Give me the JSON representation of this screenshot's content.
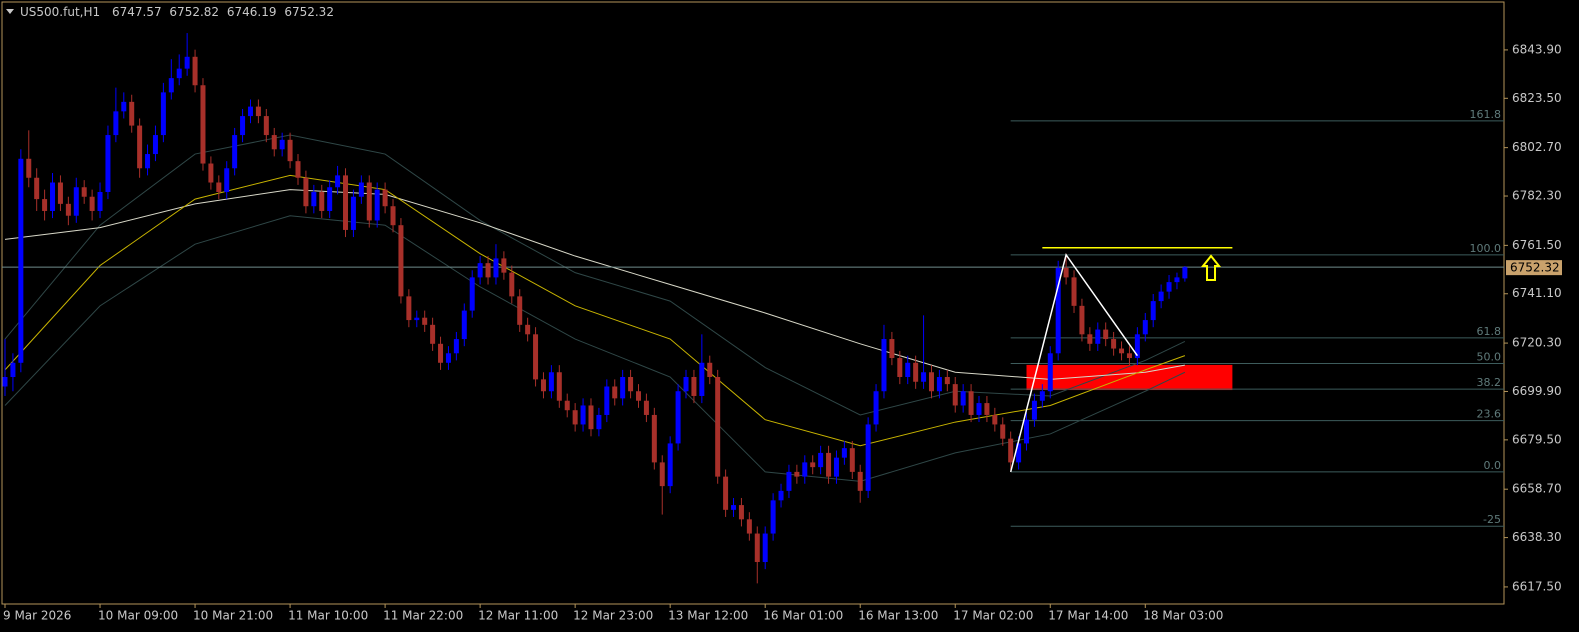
{
  "chart_data": {
    "type": "candlestick",
    "symbol": "US500.fut,H1",
    "up_color": "#0000ff",
    "down_color": "#a8302a",
    "xlim": [
      -0.38,
      189.3
    ],
    "ylim": [
      6610.3,
      6864.1
    ],
    "yticks": [
      {
        "value": 6843.9,
        "label": "6843.90"
      },
      {
        "value": 6823.5,
        "label": "6823.50"
      },
      {
        "value": 6802.7,
        "label": "6802.70"
      },
      {
        "value": 6782.3,
        "label": "6782.30"
      },
      {
        "value": 6761.5,
        "label": "6761.50"
      },
      {
        "value": 6741.1,
        "label": "6741.10"
      },
      {
        "value": 6720.3,
        "label": "6720.30"
      },
      {
        "value": 6699.9,
        "label": "6699.90"
      },
      {
        "value": 6679.5,
        "label": "6679.50"
      },
      {
        "value": 6658.7,
        "label": "6658.70"
      },
      {
        "value": 6638.3,
        "label": "6638.30"
      },
      {
        "value": 6617.5,
        "label": "6617.50"
      }
    ],
    "xticks": [
      {
        "value": 0,
        "label": "9 Mar 2026"
      },
      {
        "value": 12,
        "label": "10 Mar 09:00"
      },
      {
        "value": 24,
        "label": "10 Mar 21:00"
      },
      {
        "value": 36,
        "label": "11 Mar 10:00"
      },
      {
        "value": 48,
        "label": "11 Mar 22:00"
      },
      {
        "value": 60,
        "label": "12 Mar 11:00"
      },
      {
        "value": 72,
        "label": "12 Mar 23:00"
      },
      {
        "value": 84,
        "label": "13 Mar 12:00"
      },
      {
        "value": 96,
        "label": "16 Mar 01:00"
      },
      {
        "value": 108,
        "label": "16 Mar 13:00"
      },
      {
        "value": 120,
        "label": "17 Mar 02:00"
      },
      {
        "value": 132,
        "label": "17 Mar 14:00"
      },
      {
        "value": 144,
        "label": "18 Mar 03:00"
      }
    ],
    "candles": [
      [
        6702,
        6722,
        6698,
        6706
      ],
      [
        6706,
        6716,
        6700,
        6712
      ],
      [
        6712,
        6802,
        6708,
        6798
      ],
      [
        6798,
        6810,
        6786,
        6790
      ],
      [
        6790,
        6794,
        6776,
        6781
      ],
      [
        6781,
        6785,
        6772,
        6776
      ],
      [
        6776,
        6792,
        6773,
        6788
      ],
      [
        6788,
        6791,
        6776,
        6779
      ],
      [
        6779,
        6782,
        6770,
        6774
      ],
      [
        6774,
        6790,
        6771,
        6786
      ],
      [
        6786,
        6789,
        6779,
        6782
      ],
      [
        6782,
        6785,
        6772,
        6776
      ],
      [
        6776,
        6788,
        6773,
        6784
      ],
      [
        6784,
        6812,
        6781,
        6808
      ],
      [
        6808,
        6828,
        6805,
        6818
      ],
      [
        6818,
        6826,
        6815,
        6822
      ],
      [
        6822,
        6825,
        6809,
        6812
      ],
      [
        6812,
        6815,
        6790,
        6794
      ],
      [
        6794,
        6804,
        6791,
        6800
      ],
      [
        6800,
        6812,
        6797,
        6808
      ],
      [
        6808,
        6830,
        6805,
        6826
      ],
      [
        6826,
        6840,
        6823,
        6832
      ],
      [
        6832,
        6842,
        6829,
        6836
      ],
      [
        6836,
        6851,
        6833,
        6841
      ],
      [
        6841,
        6844,
        6826,
        6829
      ],
      [
        6829,
        6832,
        6793,
        6796
      ],
      [
        6796,
        6799,
        6785,
        6788
      ],
      [
        6788,
        6791,
        6781,
        6784
      ],
      [
        6784,
        6797,
        6781,
        6794
      ],
      [
        6794,
        6811,
        6791,
        6808
      ],
      [
        6808,
        6819,
        6805,
        6816
      ],
      [
        6816,
        6823,
        6813,
        6820
      ],
      [
        6820,
        6823,
        6813,
        6816
      ],
      [
        6816,
        6819,
        6805,
        6808
      ],
      [
        6808,
        6811,
        6799,
        6802
      ],
      [
        6802,
        6809,
        6799,
        6806
      ],
      [
        6806,
        6809,
        6794,
        6797
      ],
      [
        6797,
        6800,
        6787,
        6790
      ],
      [
        6790,
        6793,
        6775,
        6778
      ],
      [
        6778,
        6787,
        6775,
        6784
      ],
      [
        6784,
        6787,
        6773,
        6776
      ],
      [
        6776,
        6789,
        6773,
        6786
      ],
      [
        6786,
        6795,
        6783,
        6791
      ],
      [
        6791,
        6794,
        6765,
        6768
      ],
      [
        6768,
        6785,
        6765,
        6782
      ],
      [
        6782,
        6791,
        6779,
        6788
      ],
      [
        6788,
        6791,
        6769,
        6772
      ],
      [
        6772,
        6788,
        6769,
        6785
      ],
      [
        6785,
        6788,
        6775,
        6778
      ],
      [
        6778,
        6781,
        6767,
        6770
      ],
      [
        6770,
        6773,
        6737,
        6740
      ],
      [
        6740,
        6743,
        6727,
        6730
      ],
      [
        6730,
        6734,
        6727,
        6731
      ],
      [
        6731,
        6734,
        6725,
        6728
      ],
      [
        6728,
        6731,
        6717,
        6720
      ],
      [
        6720,
        6723,
        6709,
        6712
      ],
      [
        6712,
        6719,
        6709,
        6716
      ],
      [
        6716,
        6725,
        6713,
        6722
      ],
      [
        6722,
        6737,
        6719,
        6734
      ],
      [
        6734,
        6751,
        6731,
        6748
      ],
      [
        6748,
        6757,
        6745,
        6754
      ],
      [
        6754,
        6757,
        6745,
        6748
      ],
      [
        6748,
        6762,
        6745,
        6756
      ],
      [
        6756,
        6759,
        6747,
        6750
      ],
      [
        6750,
        6753,
        6737,
        6740
      ],
      [
        6740,
        6743,
        6725,
        6728
      ],
      [
        6728,
        6731,
        6721,
        6724
      ],
      [
        6724,
        6727,
        6702,
        6705
      ],
      [
        6705,
        6708,
        6697,
        6700
      ],
      [
        6700,
        6711,
        6697,
        6708
      ],
      [
        6708,
        6711,
        6693,
        6696
      ],
      [
        6696,
        6699,
        6689,
        6692
      ],
      [
        6692,
        6695,
        6683,
        6686
      ],
      [
        6686,
        6697,
        6683,
        6694
      ],
      [
        6694,
        6697,
        6681,
        6684
      ],
      [
        6684,
        6693,
        6681,
        6690
      ],
      [
        6690,
        6705,
        6687,
        6702
      ],
      [
        6702,
        6705,
        6694,
        6697
      ],
      [
        6697,
        6709,
        6694,
        6706
      ],
      [
        6706,
        6709,
        6697,
        6700
      ],
      [
        6700,
        6703,
        6693,
        6696
      ],
      [
        6696,
        6699,
        6687,
        6690
      ],
      [
        6690,
        6693,
        6667,
        6670
      ],
      [
        6670,
        6673,
        6648,
        6660
      ],
      [
        6660,
        6681,
        6657,
        6678
      ],
      [
        6678,
        6703,
        6675,
        6700
      ],
      [
        6700,
        6709,
        6697,
        6706
      ],
      [
        6706,
        6709,
        6695,
        6698
      ],
      [
        6698,
        6724,
        6695,
        6712
      ],
      [
        6712,
        6715,
        6703,
        6706
      ],
      [
        6706,
        6709,
        6661,
        6664
      ],
      [
        6664,
        6667,
        6647,
        6650
      ],
      [
        6650,
        6655,
        6647,
        6652
      ],
      [
        6652,
        6655,
        6643,
        6646
      ],
      [
        6646,
        6649,
        6637,
        6640
      ],
      [
        6640,
        6643,
        6619,
        6628
      ],
      [
        6628,
        6643,
        6625,
        6640
      ],
      [
        6640,
        6657,
        6637,
        6654
      ],
      [
        6654,
        6661,
        6651,
        6658
      ],
      [
        6658,
        6669,
        6655,
        6666
      ],
      [
        6666,
        6669,
        6661,
        6664
      ],
      [
        6664,
        6673,
        6661,
        6670
      ],
      [
        6670,
        6673,
        6665,
        6668
      ],
      [
        6668,
        6677,
        6665,
        6674
      ],
      [
        6674,
        6677,
        6661,
        6664
      ],
      [
        6664,
        6675,
        6661,
        6672
      ],
      [
        6672,
        6679,
        6669,
        6676
      ],
      [
        6676,
        6679,
        6663,
        6666
      ],
      [
        6666,
        6669,
        6653,
        6658
      ],
      [
        6658,
        6689,
        6655,
        6686
      ],
      [
        6686,
        6703,
        6683,
        6700
      ],
      [
        6700,
        6728,
        6697,
        6722
      ],
      [
        6722,
        6725,
        6711,
        6714
      ],
      [
        6714,
        6717,
        6703,
        6706
      ],
      [
        6706,
        6715,
        6703,
        6712
      ],
      [
        6712,
        6715,
        6701,
        6704
      ],
      [
        6704,
        6732,
        6701,
        6708
      ],
      [
        6708,
        6711,
        6697,
        6700
      ],
      [
        6700,
        6709,
        6697,
        6706
      ],
      [
        6706,
        6709,
        6700,
        6703
      ],
      [
        6703,
        6706,
        6691,
        6694
      ],
      [
        6694,
        6703,
        6691,
        6700
      ],
      [
        6700,
        6703,
        6687,
        6690
      ],
      [
        6690,
        6698,
        6687,
        6695
      ],
      [
        6695,
        6698,
        6687,
        6690
      ],
      [
        6690,
        6693,
        6683,
        6686
      ],
      [
        6686,
        6689,
        6677,
        6680
      ],
      [
        6680,
        6683,
        6667,
        6670
      ],
      [
        6670,
        6681,
        6667,
        6678
      ],
      [
        6678,
        6691,
        6675,
        6688
      ],
      [
        6688,
        6699,
        6685,
        6696
      ],
      [
        6696,
        6703,
        6693,
        6700
      ],
      [
        6700,
        6719,
        6697,
        6716
      ],
      [
        6716,
        6755,
        6713,
        6752
      ],
      [
        6752,
        6758,
        6745,
        6748
      ],
      [
        6748,
        6751,
        6733,
        6736
      ],
      [
        6736,
        6739,
        6721,
        6724
      ],
      [
        6724,
        6727,
        6717,
        6720
      ],
      [
        6720,
        6729,
        6717,
        6726
      ],
      [
        6726,
        6729,
        6719,
        6722
      ],
      [
        6722,
        6725,
        6715,
        6718
      ],
      [
        6718,
        6721,
        6713,
        6716
      ],
      [
        6716,
        6719,
        6711,
        6714
      ],
      [
        6714,
        6727,
        6711,
        6724
      ],
      [
        6724,
        6733,
        6721,
        6730
      ],
      [
        6730,
        6741,
        6727,
        6738
      ],
      [
        6738,
        6745,
        6735,
        6742
      ],
      [
        6742,
        6749,
        6739,
        6746
      ],
      [
        6746,
        6750,
        6743,
        6748
      ],
      [
        6747.57,
        6752.82,
        6746.19,
        6752.32
      ]
    ],
    "moving_averages": [
      {
        "color": "#2f4747",
        "x": [
          0,
          12,
          24,
          36,
          48,
          60,
          72,
          84,
          96,
          108,
          120,
          132,
          144,
          149
        ],
        "values": [
          6722,
          6770,
          6800,
          6808,
          6800,
          6772,
          6750,
          6738,
          6710,
          6690,
          6700,
          6698,
          6713,
          6721
        ]
      },
      {
        "color": "#2f4747",
        "x": [
          0,
          12,
          24,
          36,
          48,
          60,
          72,
          84,
          96,
          108,
          120,
          132,
          144,
          149
        ],
        "values": [
          6694,
          6736,
          6762,
          6774,
          6770,
          6744,
          6722,
          6706,
          6666,
          6662,
          6674,
          6682,
          6700,
          6708
        ]
      },
      {
        "color": "#d8d8c8",
        "x": [
          0,
          12,
          24,
          36,
          48,
          60,
          72,
          84,
          96,
          108,
          120,
          132,
          144,
          149
        ],
        "values": [
          6764,
          6769,
          6779,
          6785,
          6783,
          6771,
          6757,
          6745,
          6733,
          6720,
          6708,
          6705,
          6708,
          6711
        ]
      },
      {
        "color": "#c8b400",
        "x": [
          0,
          12,
          24,
          36,
          48,
          60,
          72,
          84,
          96,
          108,
          120,
          132,
          144,
          149
        ],
        "values": [
          6709,
          6753,
          6781,
          6791,
          6785,
          6758,
          6736,
          6722,
          6688,
          6677,
          6687,
          6694,
          6709,
          6715
        ]
      }
    ],
    "fibonacci": {
      "color": "#3d5c5c",
      "x_start": 127,
      "levels": [
        {
          "value": 6814.0,
          "label": "161.8"
        },
        {
          "value": 6757.5,
          "label": "100.0"
        },
        {
          "value": 6722.5,
          "label": "61.8"
        },
        {
          "value": 6711.7,
          "label": "50.0"
        },
        {
          "value": 6700.9,
          "label": "38.2"
        },
        {
          "value": 6687.6,
          "label": "23.6"
        },
        {
          "value": 6666.0,
          "label": "0.0"
        },
        {
          "value": 6643.1,
          "label": "-25"
        }
      ]
    },
    "zone": {
      "color": "#ff0000",
      "x": [
        129,
        155
      ],
      "values": [
        6700.5,
        6711.1
      ]
    },
    "trend_line": {
      "color": "#ffffff",
      "x": [
        127,
        134,
        143
      ],
      "values": [
        6666.0,
        6757.5,
        6715.0
      ]
    },
    "level_line": {
      "color": "#ffff00",
      "x": [
        131,
        155
      ],
      "value": 6760.5
    },
    "arrow": {
      "color": "#ffff00",
      "x": 152.3,
      "value": 6757.0
    },
    "price_line_color": "#6f8c8c",
    "price_label_color": "#c9a26c"
  }
}
